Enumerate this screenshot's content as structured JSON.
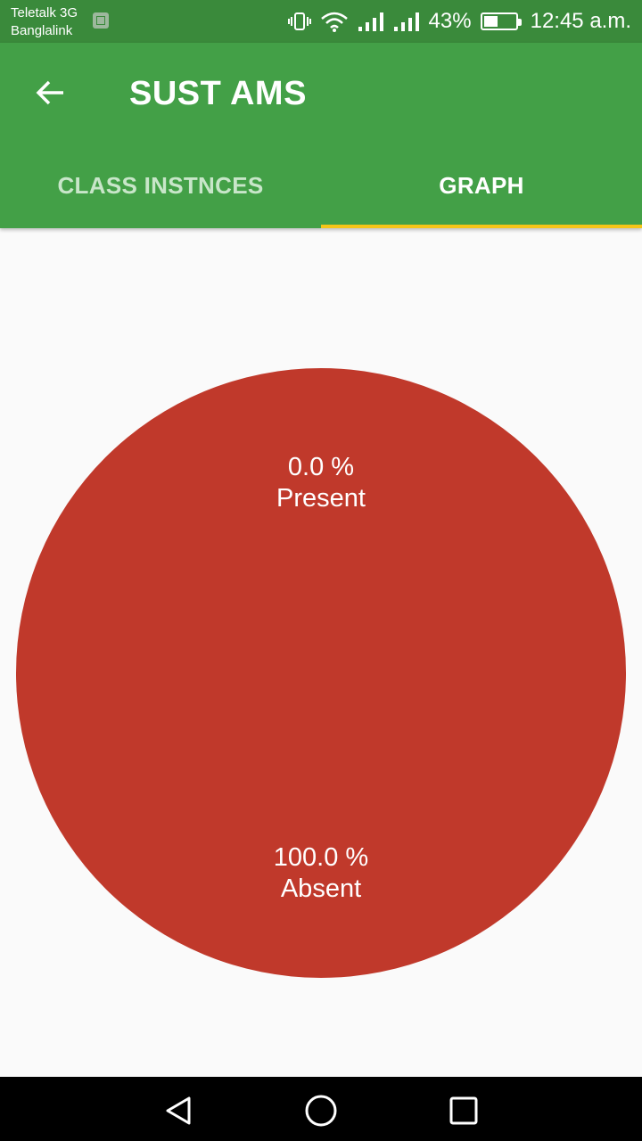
{
  "status_bar": {
    "carrier_1": "Teletalk 3G",
    "carrier_2": "Banglalink",
    "battery_percent": "43%",
    "battery_level": 0.43,
    "time": "12:45 a.m."
  },
  "app_bar": {
    "title": "SUST AMS",
    "back_icon": "arrow-left-icon"
  },
  "tabs": [
    {
      "label": "CLASS INSTNCES",
      "active": false
    },
    {
      "label": "GRAPH",
      "active": true
    }
  ],
  "colors": {
    "status_bar": "#3a8a3b",
    "app_bar": "#43a047",
    "tab_indicator": "#f5c518",
    "absent_slice": "#c0392b",
    "present_slice": "#43a047"
  },
  "chart_data": {
    "type": "pie",
    "slices": [
      {
        "label": "Present",
        "value": 0.0,
        "value_label": "0.0 %"
      },
      {
        "label": "Absent",
        "value": 100.0,
        "value_label": "100.0 %"
      }
    ]
  },
  "nav_bar": {
    "icons": [
      "back-triangle-icon",
      "home-circle-icon",
      "recents-square-icon"
    ]
  }
}
